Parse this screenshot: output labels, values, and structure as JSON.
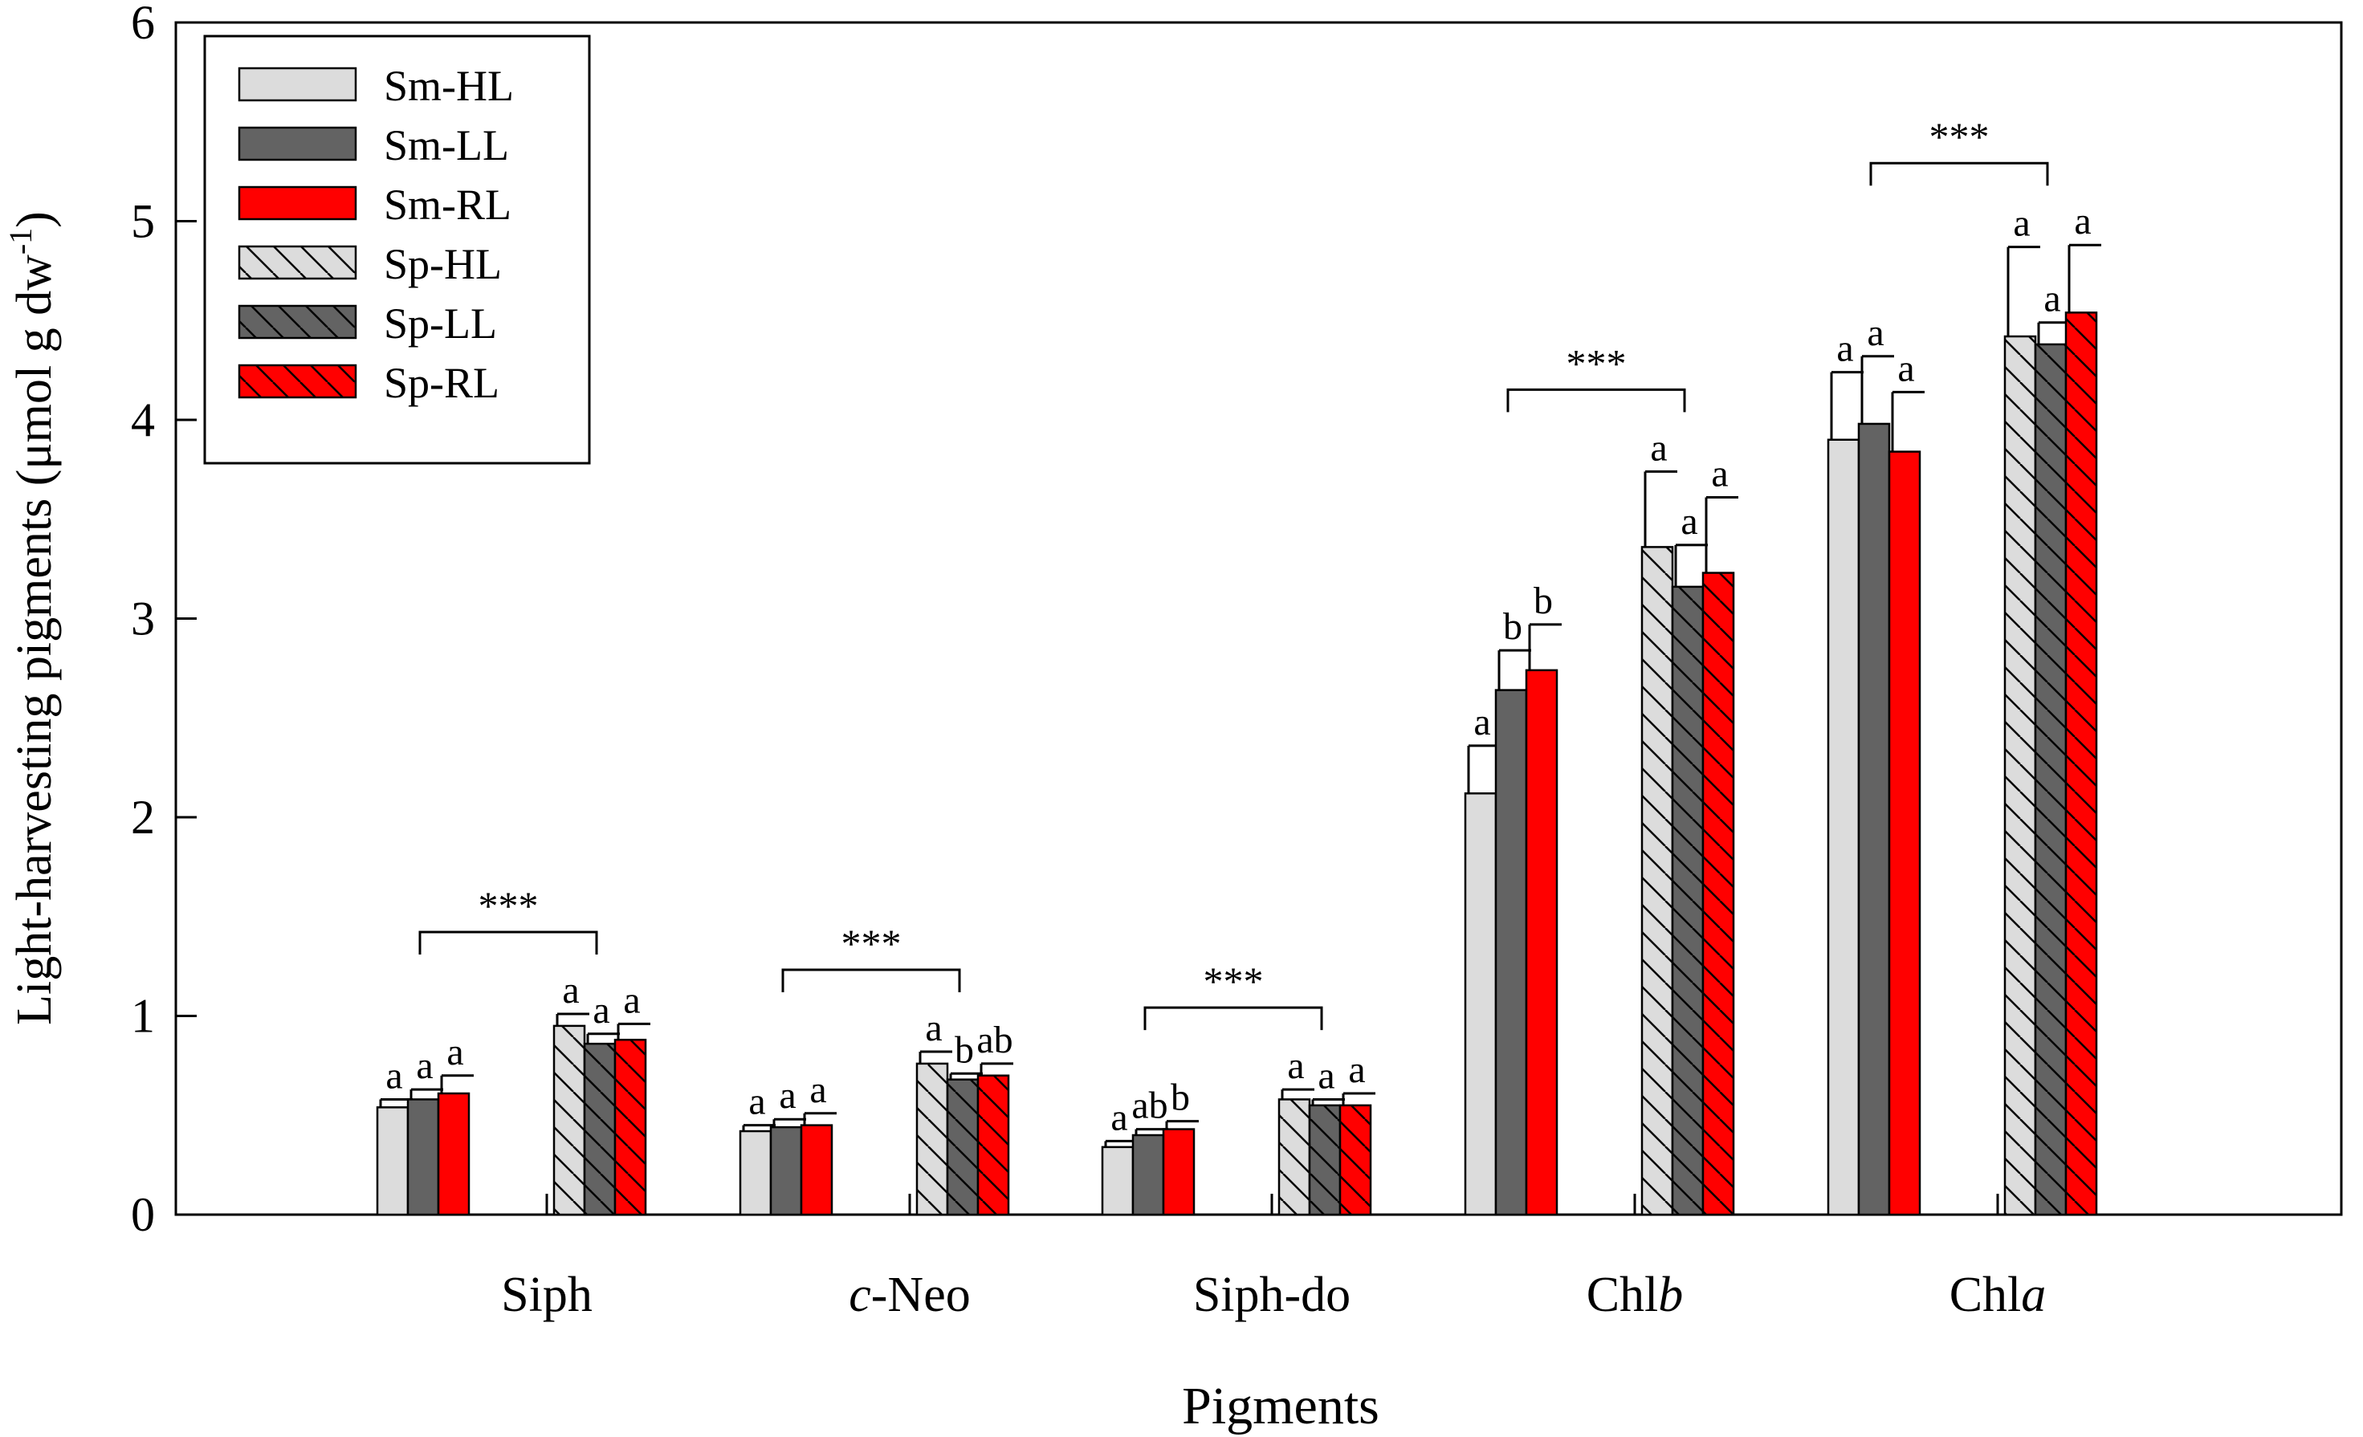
{
  "chart_data": {
    "type": "bar",
    "title": "",
    "xlabel": "Pigments",
    "ylabel_main": "Light-harvesting pigments (μmol g dw",
    "ylabel_sup": "-1",
    "ylabel_close": ")",
    "ylim": [
      0,
      6
    ],
    "yticks": [
      "0",
      "1",
      "2",
      "3",
      "4",
      "5",
      "6"
    ],
    "categories": [
      {
        "prefix": "",
        "italic": "",
        "suffix": "Siph",
        "label": "Siph"
      },
      {
        "prefix": "",
        "italic": "c",
        "suffix": "-Neo",
        "label": "c-Neo"
      },
      {
        "prefix": "",
        "italic": "",
        "suffix": "Siph-do",
        "label": "Siph-do"
      },
      {
        "prefix": "Chl",
        "italic": "b",
        "suffix": "",
        "label": "Chlb"
      },
      {
        "prefix": "Chl",
        "italic": "a",
        "suffix": "",
        "label": "Chla"
      }
    ],
    "series": [
      {
        "name": "Sm-HL",
        "color": "#dcdcdc",
        "hatch": false,
        "values": [
          0.54,
          0.42,
          0.34,
          2.12,
          3.9
        ],
        "errors": [
          0.04,
          0.03,
          0.03,
          0.24,
          0.34
        ],
        "letters": [
          "a",
          "a",
          "a",
          "a",
          "a"
        ]
      },
      {
        "name": "Sm-LL",
        "color": "#636363",
        "hatch": false,
        "values": [
          0.58,
          0.44,
          0.4,
          2.64,
          3.98
        ],
        "errors": [
          0.05,
          0.04,
          0.03,
          0.2,
          0.34
        ],
        "letters": [
          "a",
          "a",
          "ab",
          "b",
          "a"
        ]
      },
      {
        "name": "Sm-RL",
        "color": "#ff0000",
        "hatch": false,
        "values": [
          0.61,
          0.45,
          0.43,
          2.74,
          3.84
        ],
        "errors": [
          0.09,
          0.06,
          0.04,
          0.23,
          0.3
        ],
        "letters": [
          "a",
          "a",
          "b",
          "b",
          "a"
        ]
      },
      {
        "name": "Sp-HL",
        "color": "#dcdcdc",
        "hatch": true,
        "values": [
          0.95,
          0.76,
          0.58,
          3.36,
          4.42
        ],
        "errors": [
          0.06,
          0.06,
          0.05,
          0.38,
          0.45
        ],
        "letters": [
          "a",
          "a",
          "a",
          "a",
          "a"
        ]
      },
      {
        "name": "Sp-LL",
        "color": "#636363",
        "hatch": true,
        "values": [
          0.86,
          0.68,
          0.55,
          3.16,
          4.38
        ],
        "errors": [
          0.05,
          0.03,
          0.03,
          0.21,
          0.11
        ],
        "letters": [
          "a",
          "b",
          "a",
          "a",
          "a"
        ]
      },
      {
        "name": "Sp-RL",
        "color": "#ff0000",
        "hatch": true,
        "values": [
          0.88,
          0.7,
          0.55,
          3.23,
          4.54
        ],
        "errors": [
          0.08,
          0.06,
          0.06,
          0.38,
          0.34
        ],
        "letters": [
          "a",
          "ab",
          "a",
          "a",
          "a"
        ]
      }
    ],
    "significance": [
      "***",
      "***",
      "***",
      "***",
      "***"
    ],
    "legend_position": "top-left"
  }
}
